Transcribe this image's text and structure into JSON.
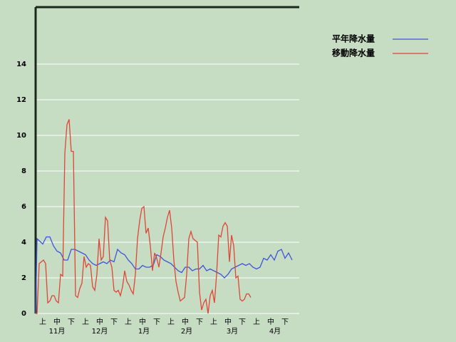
{
  "chart_data": {
    "type": "line",
    "xlim": [
      0,
      185
    ],
    "ylim": [
      0,
      17.2
    ],
    "yticks": [
      0,
      2,
      4,
      6,
      8,
      10,
      12,
      14
    ],
    "xticks": [
      {
        "value": 5,
        "label": "上"
      },
      {
        "value": 15,
        "label": "中"
      },
      {
        "value": 25,
        "label": "下"
      },
      {
        "value": 35,
        "label": "上"
      },
      {
        "value": 45,
        "label": "中"
      },
      {
        "value": 55,
        "label": "下"
      },
      {
        "value": 65,
        "label": "上"
      },
      {
        "value": 75,
        "label": "中"
      },
      {
        "value": 85,
        "label": "下"
      },
      {
        "value": 95,
        "label": "上"
      },
      {
        "value": 105,
        "label": "中"
      },
      {
        "value": 115,
        "label": "下"
      },
      {
        "value": 125,
        "label": "上"
      },
      {
        "value": 135,
        "label": "中"
      },
      {
        "value": 145,
        "label": "下"
      },
      {
        "value": 155,
        "label": "上"
      },
      {
        "value": 165,
        "label": "中"
      },
      {
        "value": 175,
        "label": "下"
      }
    ],
    "month_ticks": [
      {
        "value": 15,
        "label": "11月"
      },
      {
        "value": 45,
        "label": "12月"
      },
      {
        "value": 76,
        "label": "1月"
      },
      {
        "value": 106,
        "label": "2月"
      },
      {
        "value": 138,
        "label": "3月"
      },
      {
        "value": 168,
        "label": "4月"
      }
    ],
    "grid": true,
    "legend": "top-right",
    "series": [
      {
        "name": "平年降水量",
        "color": "#3f55d9",
        "x": [
          0,
          1,
          5,
          7.5,
          10,
          12.5,
          15,
          17.5,
          20,
          22.5,
          25,
          27.5,
          30,
          32.5,
          35,
          37.5,
          40,
          42.5,
          45,
          47.5,
          50,
          52.5,
          55,
          57.5,
          60,
          62.5,
          65,
          67.5,
          70,
          72.5,
          75,
          77.5,
          80,
          82.5,
          85,
          87.5,
          90,
          92.5,
          95,
          97.5,
          100,
          102.5,
          105,
          107.5,
          110,
          112.5,
          115,
          117.5,
          120,
          122.5,
          125,
          127.5,
          130,
          132.5,
          135,
          137.5,
          140,
          142.5,
          145,
          147.5,
          150,
          152.5,
          155,
          157.5,
          160,
          162.5,
          165,
          167.5,
          170,
          172.5,
          175,
          177.5,
          180
        ],
        "values": [
          0,
          4.2,
          3.9,
          4.3,
          4.3,
          3.8,
          3.5,
          3.4,
          3.0,
          3.0,
          3.6,
          3.6,
          3.5,
          3.4,
          3.3,
          3.0,
          2.8,
          2.7,
          2.8,
          2.9,
          2.8,
          3.0,
          2.9,
          3.6,
          3.4,
          3.3,
          3.0,
          2.8,
          2.5,
          2.5,
          2.7,
          2.6,
          2.6,
          2.7,
          3.3,
          3.2,
          3.0,
          2.9,
          2.8,
          2.6,
          2.4,
          2.3,
          2.6,
          2.6,
          2.4,
          2.5,
          2.5,
          2.7,
          2.4,
          2.5,
          2.4,
          2.3,
          2.2,
          2.0,
          2.2,
          2.5,
          2.6,
          2.7,
          2.8,
          2.7,
          2.8,
          2.6,
          2.5,
          2.6,
          3.1,
          3.0,
          3.3,
          3.0,
          3.5,
          3.6,
          3.1,
          3.4,
          3.0
        ]
      },
      {
        "name": "移動降水量",
        "color": "#e04535",
        "x": [
          0,
          1,
          2.5,
          4,
          5.5,
          7,
          8.5,
          10,
          11.5,
          13,
          14.5,
          16,
          17.5,
          19,
          20.5,
          22,
          23.5,
          25,
          26.5,
          28,
          29.5,
          31,
          32.5,
          34,
          35.5,
          37,
          38.5,
          40,
          41.5,
          43,
          44.5,
          46,
          47.5,
          49,
          50.5,
          52,
          53.5,
          55,
          56.5,
          58,
          59.5,
          61,
          62.5,
          64,
          65.5,
          67,
          68.5,
          70,
          71.5,
          73,
          74.5,
          76,
          77.5,
          79,
          80.5,
          82,
          83.5,
          85,
          86.5,
          88,
          89.5,
          91,
          92.5,
          94,
          95.5,
          97,
          98.5,
          100,
          101.5,
          103,
          104.5,
          106,
          107.5,
          109,
          110.5,
          112,
          113.5,
          115,
          116.5,
          118,
          119.5,
          121,
          122.5,
          124,
          125.5,
          127,
          128.5,
          130,
          131.5,
          133,
          134.5,
          136,
          137.5,
          139,
          140.5,
          142,
          143.5,
          145,
          146.5,
          148,
          149.5,
          151
        ],
        "values": [
          0,
          0,
          2.8,
          2.9,
          3.0,
          2.8,
          0.6,
          0.7,
          1.0,
          1.0,
          0.7,
          0.6,
          2.2,
          2.1,
          9.0,
          10.6,
          10.9,
          9.1,
          9.1,
          1.0,
          0.9,
          1.4,
          1.7,
          3.2,
          2.6,
          2.8,
          2.7,
          1.5,
          1.3,
          2.2,
          4.2,
          3.0,
          3.2,
          5.4,
          5.2,
          3.0,
          2.6,
          1.3,
          1.2,
          1.3,
          1.0,
          1.5,
          2.4,
          1.8,
          1.6,
          1.3,
          1.1,
          2.2,
          4.2,
          5.2,
          5.9,
          6.0,
          4.5,
          4.8,
          3.8,
          2.4,
          3.4,
          3.1,
          2.6,
          3.4,
          4.3,
          4.8,
          5.4,
          5.8,
          4.8,
          3.0,
          1.8,
          1.2,
          0.7,
          0.8,
          0.9,
          2.2,
          4.2,
          4.6,
          4.2,
          4.1,
          4.0,
          1.2,
          0.2,
          0.6,
          0.8,
          0.0,
          1.0,
          1.3,
          0.6,
          2.2,
          4.4,
          4.3,
          4.9,
          5.1,
          4.9,
          2.9,
          4.4,
          3.8,
          2.0,
          2.1,
          0.8,
          0.7,
          0.8,
          1.1,
          1.1,
          0.9
        ]
      }
    ]
  }
}
